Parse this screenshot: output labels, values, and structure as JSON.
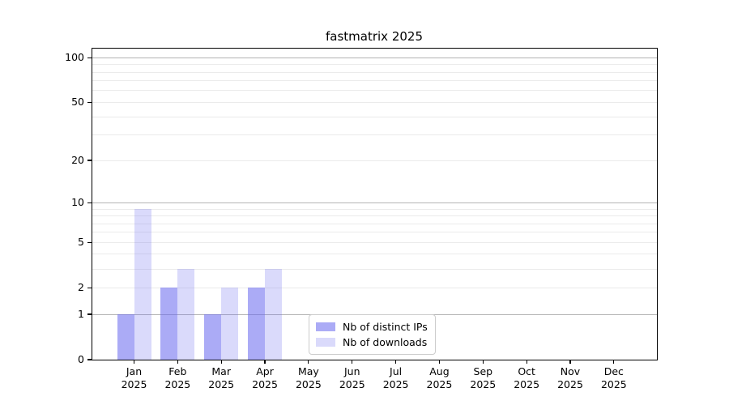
{
  "chart_data": {
    "type": "bar",
    "title": "fastmatrix 2025",
    "categories": [
      "Jan",
      "Feb",
      "Mar",
      "Apr",
      "May",
      "Jun",
      "Jul",
      "Aug",
      "Sep",
      "Oct",
      "Nov",
      "Dec"
    ],
    "category_year": "2025",
    "series": [
      {
        "name": "Nb of distinct IPs",
        "color": "rgba(102,102,238,0.55)",
        "values": [
          1,
          2,
          1,
          2,
          0,
          0,
          0,
          0,
          0,
          0,
          0,
          0
        ]
      },
      {
        "name": "Nb of downloads",
        "color": "rgba(102,102,238,0.24)",
        "values": [
          9,
          3,
          2,
          3,
          0,
          0,
          0,
          0,
          0,
          0,
          0,
          0
        ]
      }
    ],
    "y_axis": {
      "scale": "log1p",
      "tick_values": [
        0,
        1,
        2,
        5,
        10,
        20,
        50,
        100
      ],
      "tick_labels": [
        "0",
        "1",
        "2",
        "5",
        "10",
        "20",
        "50",
        "100"
      ],
      "major_grid_values": [
        1,
        10,
        100
      ],
      "minor_grid_values": [
        2,
        3,
        4,
        5,
        6,
        7,
        8,
        9,
        20,
        30,
        40,
        50,
        60,
        70,
        80,
        90
      ],
      "range_max": 110
    },
    "colors": {
      "major_grid": "#b4b4b4",
      "minor_grid": "#ebebeb",
      "spine": "#000000",
      "legend_border": "#cccccc"
    },
    "legend_position": "lower-center-right",
    "grid": true
  }
}
